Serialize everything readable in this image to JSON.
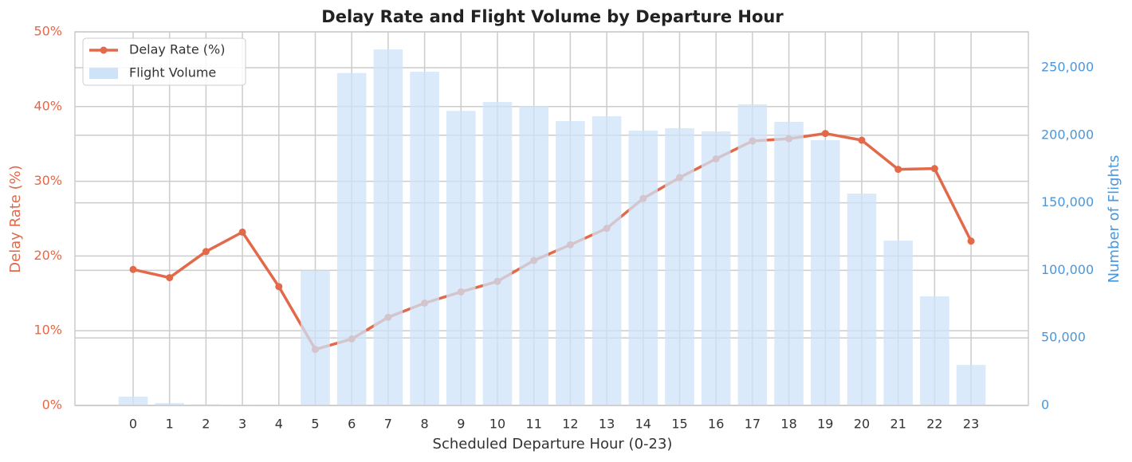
{
  "chart_data": {
    "type": "combo",
    "title": "Delay Rate and Flight Volume by Departure Hour",
    "x_label": "Scheduled Departure Hour (0-23)",
    "y_label": "Delay Rate (%)",
    "y2_label": "Number of Flights",
    "categories": [
      "0",
      "1",
      "2",
      "3",
      "4",
      "5",
      "6",
      "7",
      "8",
      "9",
      "10",
      "11",
      "12",
      "13",
      "14",
      "15",
      "16",
      "17",
      "18",
      "19",
      "20",
      "21",
      "22",
      "23"
    ],
    "series": [
      {
        "name": "Delay Rate (%)",
        "type": "line",
        "color": "#e2694a",
        "values": [
          18.2,
          17.1,
          20.6,
          23.2,
          15.9,
          7.5,
          8.9,
          11.8,
          13.7,
          15.2,
          16.6,
          19.4,
          21.5,
          23.7,
          27.7,
          30.5,
          33.0,
          35.4,
          35.7,
          36.4,
          35.5,
          31.6,
          31.7,
          22.0
        ]
      },
      {
        "name": "Flight Volume",
        "type": "bar",
        "axis": "y2",
        "color": "#cfe3f8",
        "values": [
          6500,
          1800,
          900,
          400,
          200,
          100000,
          246000,
          263500,
          247000,
          218000,
          224600,
          221700,
          210500,
          214000,
          203400,
          205200,
          202800,
          222900,
          209900,
          196300,
          156800,
          122000,
          80800,
          30000
        ]
      }
    ],
    "ylim": [
      0,
      50
    ],
    "yticks": [
      {
        "value": 0,
        "label": "0%"
      },
      {
        "value": 10,
        "label": "10%"
      },
      {
        "value": 20,
        "label": "20%"
      },
      {
        "value": 30,
        "label": "30%"
      },
      {
        "value": 40,
        "label": "40%"
      },
      {
        "value": 50,
        "label": "50%"
      }
    ],
    "y2lim": [
      0,
      276500
    ],
    "y2ticks": [
      0,
      {
        "value": 50000,
        "label": "50,000"
      },
      {
        "value": 100000,
        "label": "100,000"
      },
      {
        "value": 150000,
        "label": "150,000"
      },
      {
        "value": 200000,
        "label": "200,000"
      },
      {
        "value": 250000,
        "label": "250,000"
      }
    ],
    "grid": true,
    "legend": "upper-left",
    "y_color": "#e2694a",
    "y2_color": "#4a97df"
  }
}
